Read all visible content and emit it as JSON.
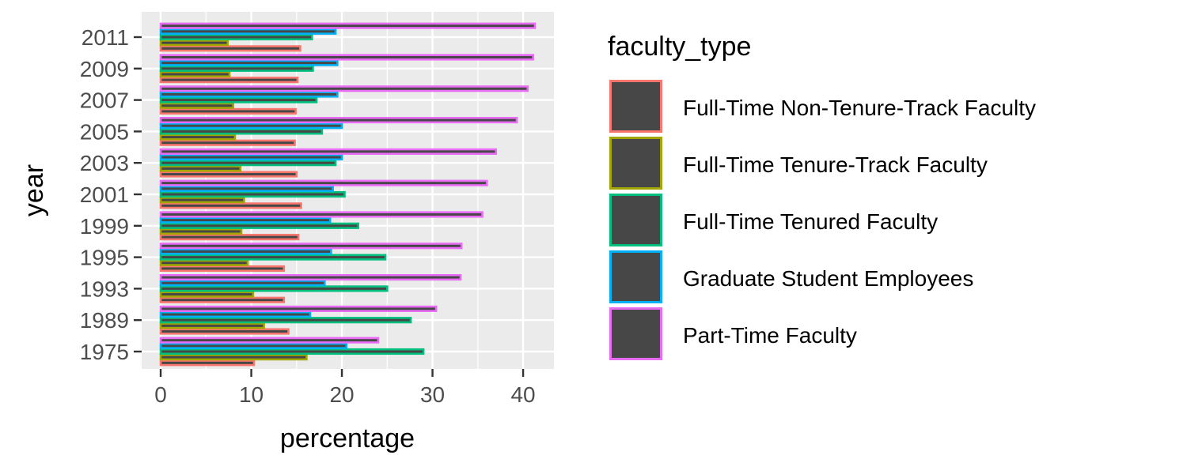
{
  "chart_data": {
    "type": "bar",
    "orientation": "horizontal",
    "categories": [
      "1975",
      "1989",
      "1993",
      "1995",
      "1999",
      "2001",
      "2003",
      "2005",
      "2007",
      "2009",
      "2011"
    ],
    "series": [
      {
        "name": "Full-Time Non-Tenure-Track Faculty",
        "color": "#F8766D",
        "values": [
          10.3,
          14.1,
          13.6,
          13.6,
          15.2,
          15.5,
          15.0,
          14.8,
          14.9,
          15.1,
          15.4
        ]
      },
      {
        "name": "Full-Time Tenure-Track Faculty",
        "color": "#A3A500",
        "values": [
          16.1,
          11.4,
          10.2,
          9.6,
          8.9,
          9.2,
          8.8,
          8.2,
          8.0,
          7.6,
          7.4
        ]
      },
      {
        "name": "Full-Time Tenured Faculty",
        "color": "#00BF7D",
        "values": [
          29.0,
          27.6,
          25.0,
          24.8,
          21.8,
          20.3,
          19.3,
          17.8,
          17.2,
          16.8,
          16.7
        ]
      },
      {
        "name": "Graduate Student Employees",
        "color": "#00B0F6",
        "values": [
          20.5,
          16.5,
          18.1,
          18.8,
          18.7,
          19.0,
          20.0,
          20.0,
          19.5,
          19.5,
          19.3
        ]
      },
      {
        "name": "Part-Time Faculty",
        "color": "#E76BF3",
        "values": [
          24.0,
          30.4,
          33.1,
          33.2,
          35.5,
          36.0,
          37.0,
          39.3,
          40.5,
          41.1,
          41.3
        ]
      }
    ],
    "xlabel": "percentage",
    "ylabel": "year",
    "xlim": [
      -2.1,
      43.4
    ],
    "xticks": [
      "0",
      "10",
      "20",
      "30",
      "40"
    ],
    "legend": {
      "title": "faculty_type",
      "position": "right"
    },
    "grid": true,
    "panel_background": "#EBEBEB",
    "bar_fill": "#474747"
  }
}
